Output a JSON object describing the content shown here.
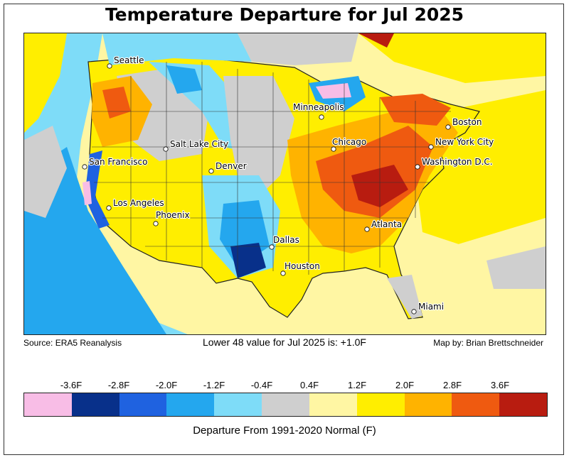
{
  "title": "Temperature Departure for Jul 2025",
  "source": "Source: ERA5 Reanalysis",
  "lower48": "Lower 48 value for Jul 2025 is: +1.0F",
  "credit": "Map by: Brian Brettschneider",
  "legend_title": "Departure From 1991-2020 Normal (F)",
  "legend_ticks": [
    "-3.6F",
    "-2.8F",
    "-2.0F",
    "-1.2F",
    "-0.4F",
    "0.4F",
    "1.2F",
    "2.0F",
    "2.8F",
    "3.6F"
  ],
  "legend_colors": [
    "#f8bde6",
    "#08308a",
    "#1f62e0",
    "#24a7ee",
    "#7edcf8",
    "#cfcfcf",
    "#fff6a3",
    "#ffee00",
    "#ffb300",
    "#ef5a10",
    "#b81c10"
  ],
  "cities": [
    {
      "name": "Seattle",
      "icon": "city-dot-icon"
    },
    {
      "name": "San Francisco",
      "icon": "city-dot-icon"
    },
    {
      "name": "Los Angeles",
      "icon": "city-dot-icon"
    },
    {
      "name": "Salt Lake City",
      "icon": "city-dot-icon"
    },
    {
      "name": "Denver",
      "icon": "city-dot-icon"
    },
    {
      "name": "Phoenix",
      "icon": "city-dot-icon"
    },
    {
      "name": "Dallas",
      "icon": "city-dot-icon"
    },
    {
      "name": "Houston",
      "icon": "city-dot-icon"
    },
    {
      "name": "Minneapolis",
      "icon": "city-dot-icon"
    },
    {
      "name": "Chicago",
      "icon": "city-dot-icon"
    },
    {
      "name": "Atlanta",
      "icon": "city-dot-icon"
    },
    {
      "name": "Miami",
      "icon": "city-dot-icon"
    },
    {
      "name": "Washington D.C.",
      "icon": "city-dot-icon"
    },
    {
      "name": "New York City",
      "icon": "city-dot-icon"
    },
    {
      "name": "Boston",
      "icon": "city-dot-icon"
    }
  ]
}
